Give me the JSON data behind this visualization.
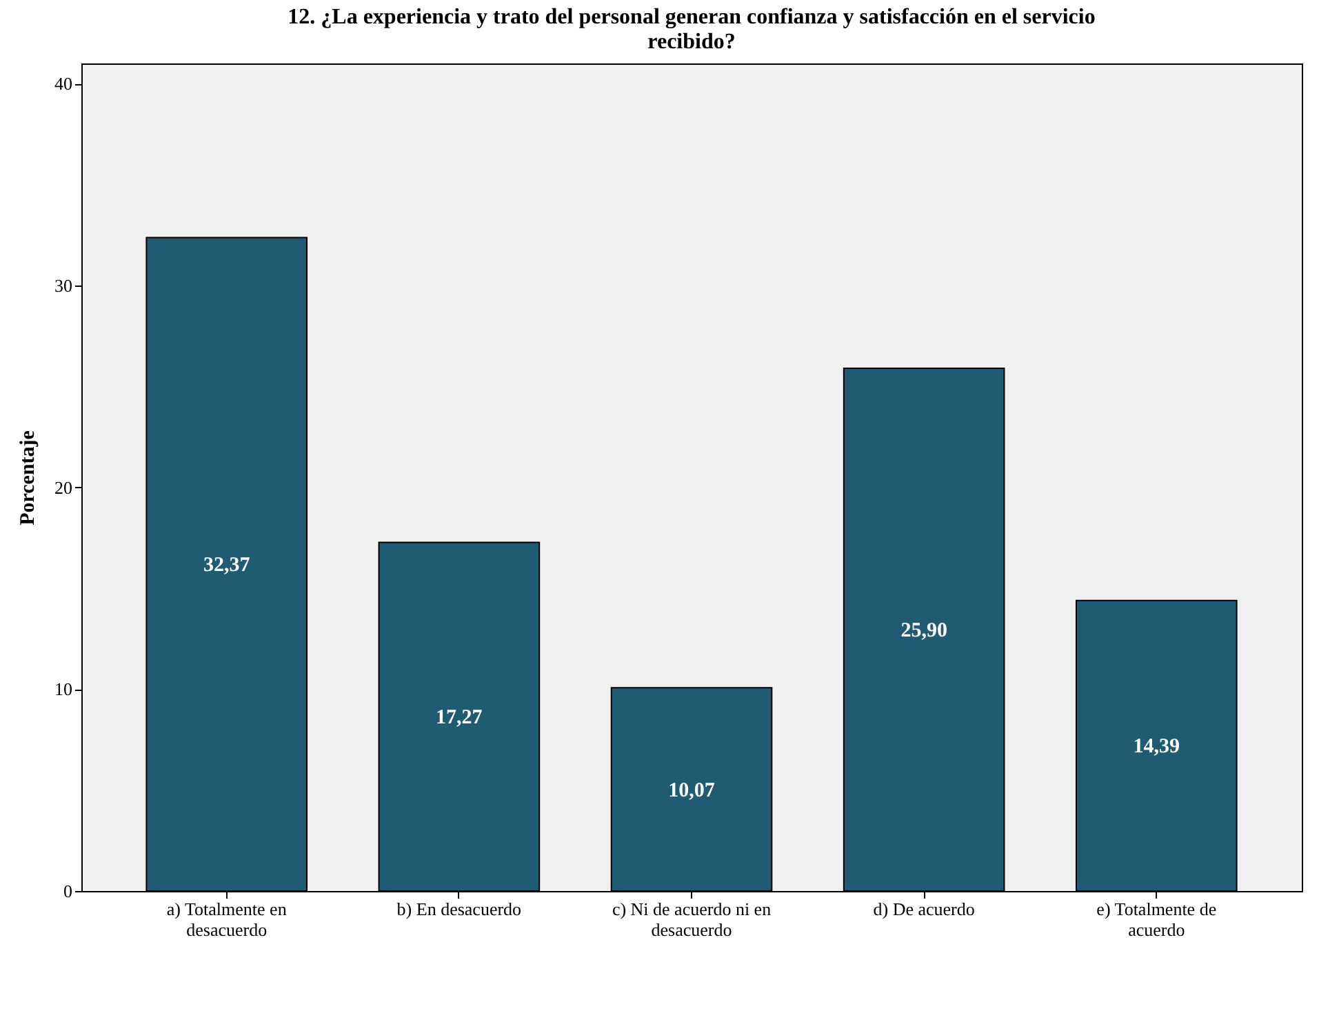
{
  "chart_data": {
    "type": "bar",
    "title": "12. ¿La experiencia y trato del personal generan confianza y satisfacción en el servicio recibido?",
    "ylabel": "Porcentaje",
    "categories": [
      "a) Totalmente en desacuerdo",
      "b) En desacuerdo",
      "c) Ni de acuerdo ni en desacuerdo",
      "d) De acuerdo",
      "e) Totalmente de acuerdo"
    ],
    "values": [
      32.37,
      17.27,
      10.07,
      25.9,
      14.39
    ],
    "value_labels": [
      "32,37",
      "17,27",
      "10,07",
      "25,90",
      "14,39"
    ],
    "color": "#1f5c73",
    "ylim": [
      0,
      41
    ],
    "yticks": [
      0,
      10,
      20,
      30,
      40
    ],
    "grid": false
  }
}
